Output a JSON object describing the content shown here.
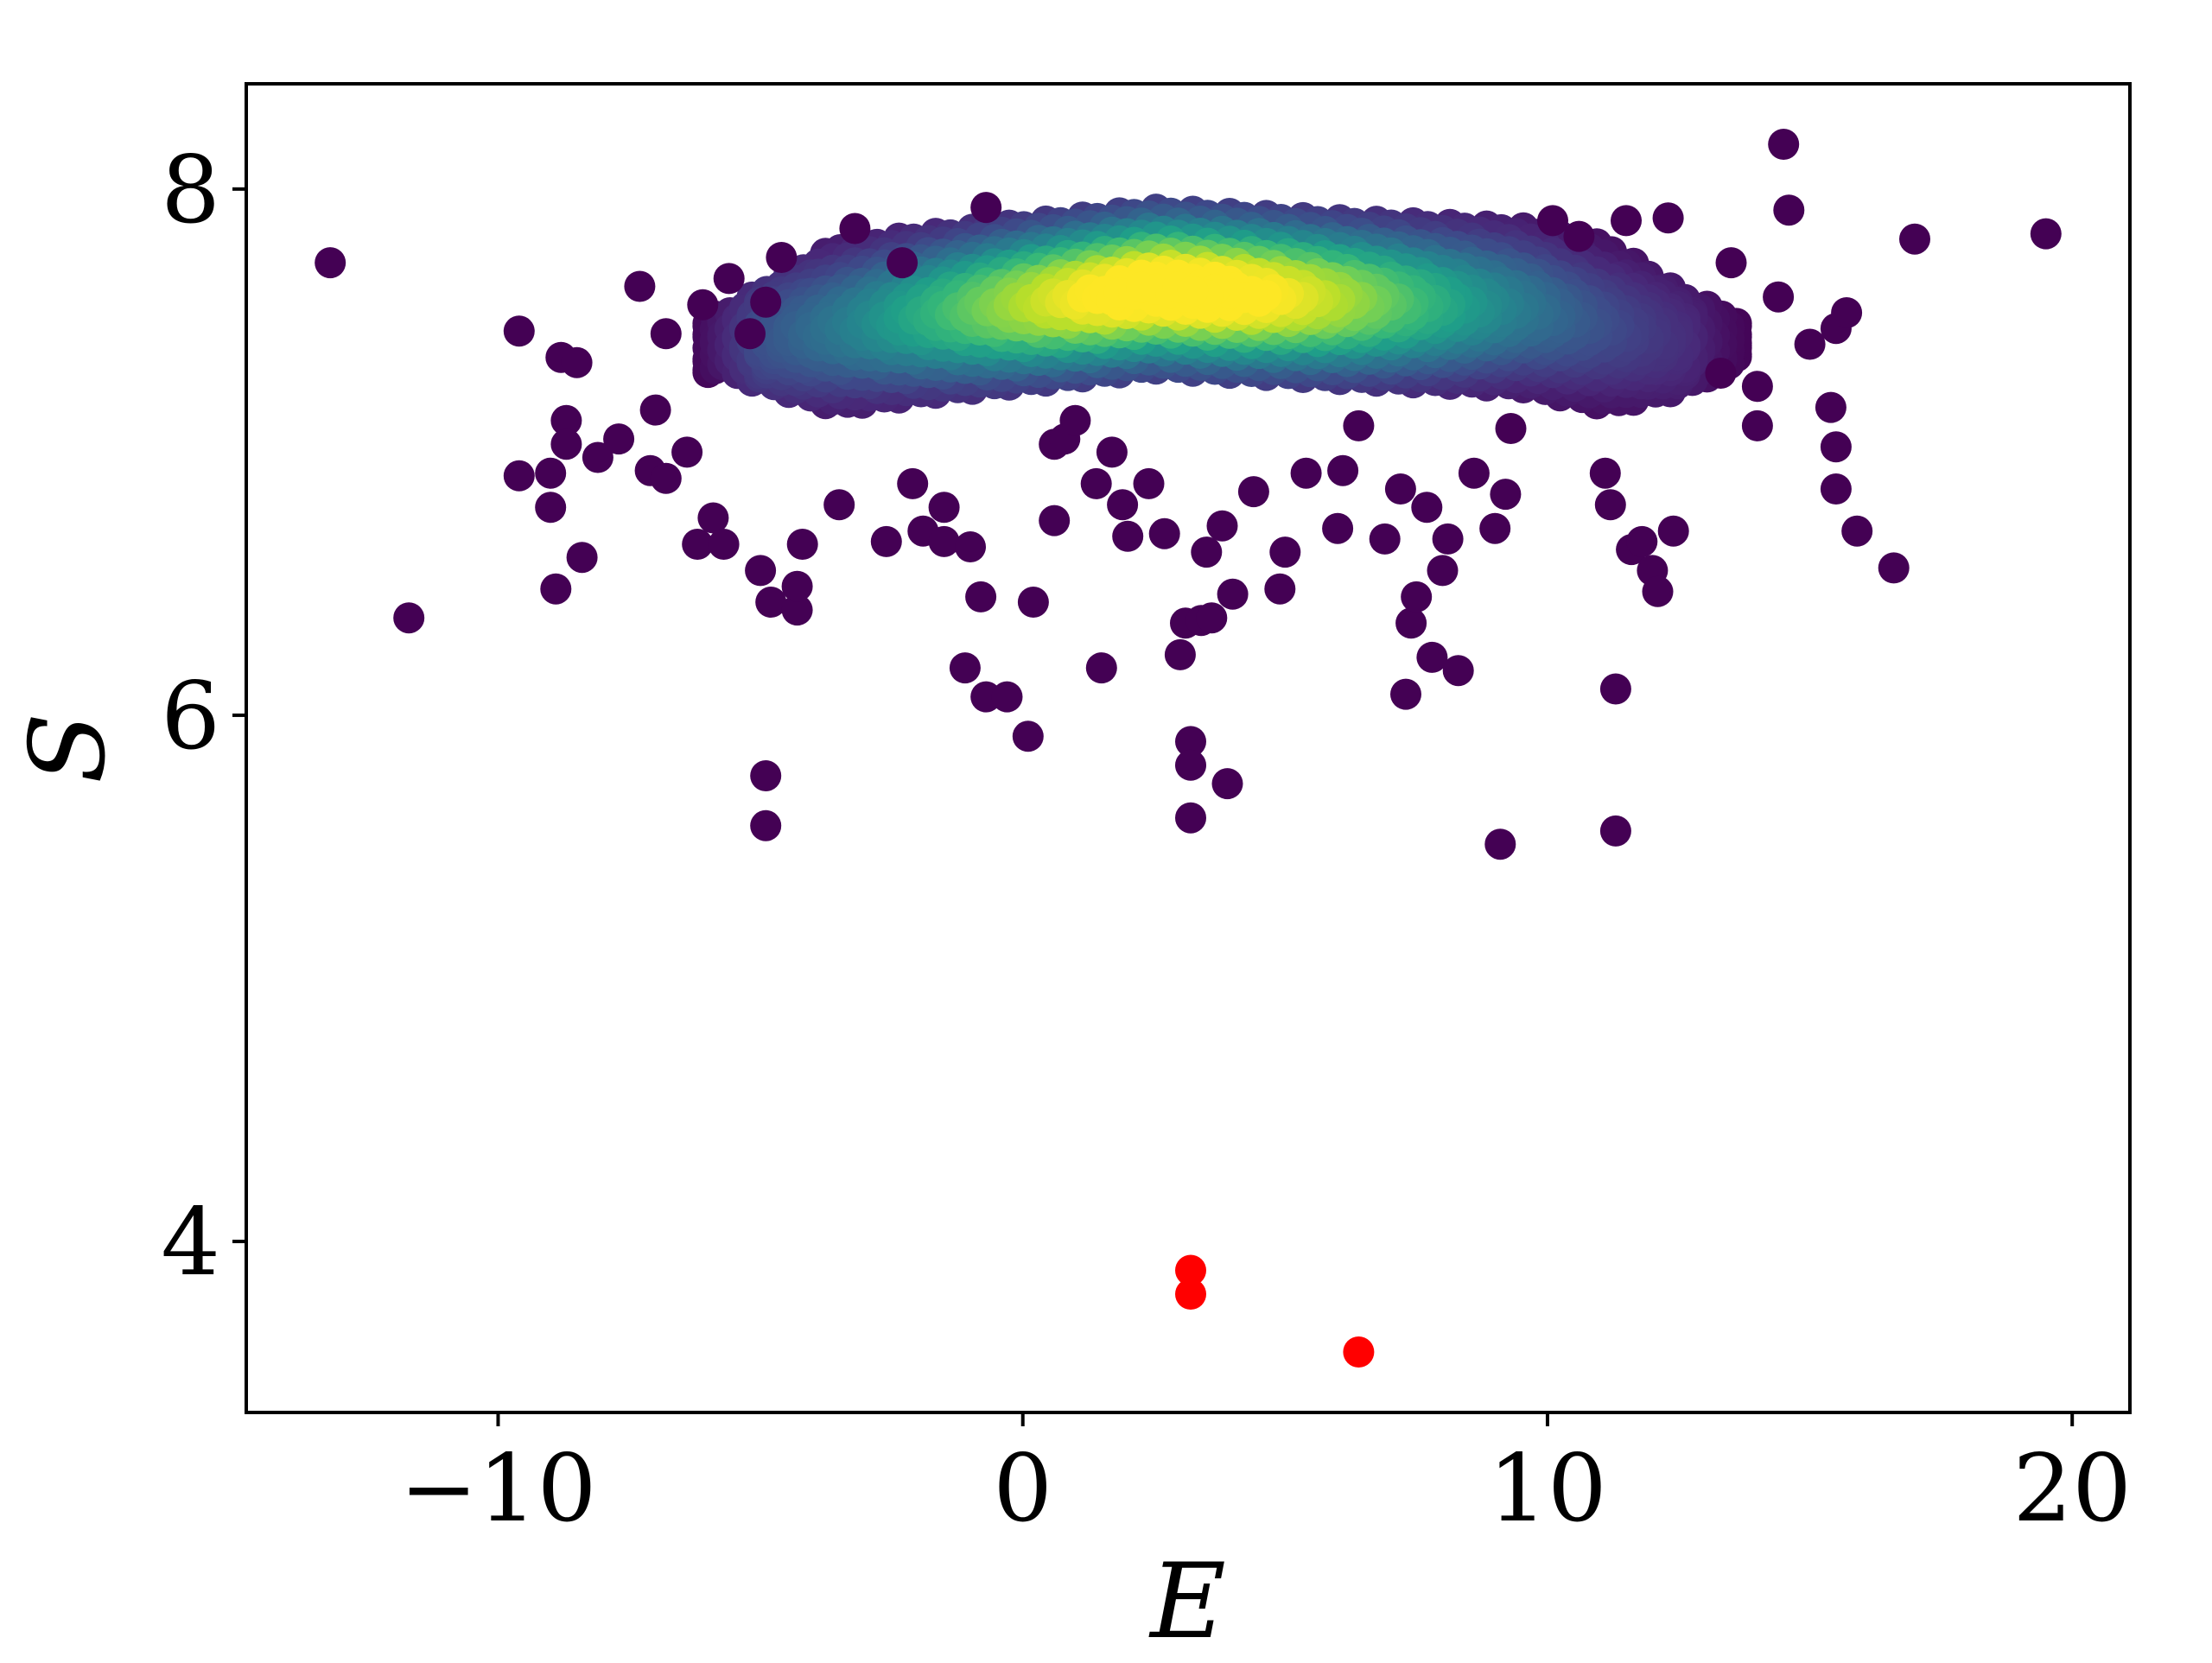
{
  "chart_data": {
    "type": "scatter",
    "xlabel": "E",
    "ylabel": "S",
    "xlim": [
      -14.8,
      21.1
    ],
    "ylim": [
      3.35,
      8.4
    ],
    "x_ticks": [
      {
        "value": -10,
        "label": "−10"
      },
      {
        "value": 0,
        "label": "0"
      },
      {
        "value": 10,
        "label": "10"
      },
      {
        "value": 20,
        "label": "20"
      }
    ],
    "y_ticks": [
      {
        "value": 4,
        "label": "4"
      },
      {
        "value": 6,
        "label": "6"
      },
      {
        "value": 8,
        "label": "8"
      }
    ],
    "grid": false,
    "legend": "none",
    "colormap": "viridis",
    "colors": {
      "low_density": "#440154",
      "mid_density": "#21918c",
      "high_density": "#fde725",
      "highlight": "#ff0000"
    },
    "dense_band": {
      "description_units": "data",
      "centers": [
        {
          "x": -5.5,
          "y": 7.42
        },
        {
          "x": -2.0,
          "y": 7.52
        },
        {
          "x": 2.5,
          "y": 7.62
        },
        {
          "x": 6.0,
          "y": 7.58
        },
        {
          "x": 9.5,
          "y": 7.55
        },
        {
          "x": 12.5,
          "y": 7.42
        }
      ]
    },
    "outlier_points": [
      [
        -13.2,
        7.72
      ],
      [
        -11.7,
        6.37
      ],
      [
        -9.6,
        7.46
      ],
      [
        -9.6,
        6.91
      ],
      [
        -9.0,
        6.92
      ],
      [
        -9.0,
        6.79
      ],
      [
        -8.8,
        7.36
      ],
      [
        -8.5,
        7.34
      ],
      [
        -8.7,
        7.12
      ],
      [
        -8.7,
        7.03
      ],
      [
        -8.4,
        6.6
      ],
      [
        -8.9,
        6.48
      ],
      [
        -8.1,
        6.98
      ],
      [
        -7.7,
        7.05
      ],
      [
        -7.3,
        7.63
      ],
      [
        -7.0,
        7.16
      ],
      [
        -6.8,
        7.45
      ],
      [
        -7.1,
        6.93
      ],
      [
        -6.8,
        6.9
      ],
      [
        -6.1,
        7.56
      ],
      [
        -6.4,
        7.0
      ],
      [
        -6.2,
        6.65
      ],
      [
        -5.9,
        6.75
      ],
      [
        -5.7,
        6.65
      ],
      [
        -5.6,
        7.66
      ],
      [
        -5.2,
        7.45
      ],
      [
        -4.9,
        7.57
      ],
      [
        -5.0,
        6.55
      ],
      [
        -4.8,
        6.43
      ],
      [
        -4.3,
        6.4
      ],
      [
        -4.9,
        5.77
      ],
      [
        -4.9,
        5.58
      ],
      [
        -4.6,
        7.74
      ],
      [
        -4.3,
        6.49
      ],
      [
        -4.2,
        6.65
      ],
      [
        -3.5,
        6.8
      ],
      [
        -3.2,
        7.85
      ],
      [
        -2.6,
        6.66
      ],
      [
        -2.3,
        7.72
      ],
      [
        -2.1,
        6.88
      ],
      [
        -1.9,
        6.7
      ],
      [
        -1.5,
        6.66
      ],
      [
        -1.5,
        6.79
      ],
      [
        -1.1,
        6.18
      ],
      [
        -1.0,
        6.64
      ],
      [
        -0.8,
        6.45
      ],
      [
        -0.7,
        6.07
      ],
      [
        -0.3,
        6.07
      ],
      [
        -0.7,
        7.93
      ],
      [
        0.1,
        5.92
      ],
      [
        0.2,
        6.43
      ],
      [
        0.6,
        7.03
      ],
      [
        0.6,
        6.74
      ],
      [
        0.8,
        7.05
      ],
      [
        1.0,
        7.12
      ],
      [
        1.4,
        6.88
      ],
      [
        1.5,
        6.18
      ],
      [
        1.7,
        7.0
      ],
      [
        1.9,
        6.8
      ],
      [
        2.0,
        6.68
      ],
      [
        2.4,
        6.88
      ],
      [
        2.7,
        6.69
      ],
      [
        3.0,
        6.23
      ],
      [
        3.1,
        6.35
      ],
      [
        3.2,
        5.9
      ],
      [
        3.2,
        5.81
      ],
      [
        3.2,
        5.61
      ],
      [
        3.4,
        6.36
      ],
      [
        3.5,
        6.62
      ],
      [
        3.6,
        6.37
      ],
      [
        3.8,
        6.72
      ],
      [
        3.9,
        5.74
      ],
      [
        4.0,
        6.46
      ],
      [
        4.4,
        6.85
      ],
      [
        4.9,
        6.48
      ],
      [
        5.0,
        6.62
      ],
      [
        5.4,
        6.92
      ],
      [
        6.0,
        6.71
      ],
      [
        6.1,
        6.93
      ],
      [
        6.4,
        7.1
      ],
      [
        6.9,
        6.67
      ],
      [
        7.2,
        6.86
      ],
      [
        7.3,
        6.08
      ],
      [
        7.4,
        6.35
      ],
      [
        7.5,
        6.45
      ],
      [
        7.8,
        6.22
      ],
      [
        7.7,
        6.79
      ],
      [
        8.0,
        6.55
      ],
      [
        8.1,
        6.67
      ],
      [
        8.3,
        6.17
      ],
      [
        8.6,
        6.92
      ],
      [
        9.0,
        6.71
      ],
      [
        9.2,
        6.84
      ],
      [
        9.1,
        5.51
      ],
      [
        9.3,
        7.09
      ],
      [
        10.1,
        7.88
      ],
      [
        10.6,
        7.82
      ],
      [
        11.1,
        6.92
      ],
      [
        11.2,
        6.8
      ],
      [
        11.3,
        6.1
      ],
      [
        11.3,
        5.56
      ],
      [
        11.5,
        7.88
      ],
      [
        11.6,
        6.63
      ],
      [
        11.8,
        6.66
      ],
      [
        12.0,
        6.55
      ],
      [
        12.1,
        6.47
      ],
      [
        12.4,
        6.7
      ],
      [
        12.3,
        7.89
      ],
      [
        13.3,
        7.3
      ],
      [
        13.5,
        7.72
      ],
      [
        14.0,
        7.1
      ],
      [
        14.0,
        7.25
      ],
      [
        14.4,
        7.59
      ],
      [
        14.5,
        8.17
      ],
      [
        14.6,
        7.92
      ],
      [
        15.0,
        7.41
      ],
      [
        15.5,
        7.47
      ],
      [
        15.7,
        7.53
      ],
      [
        15.4,
        7.17
      ],
      [
        15.5,
        7.02
      ],
      [
        15.5,
        6.86
      ],
      [
        15.9,
        6.7
      ],
      [
        16.6,
        6.56
      ],
      [
        17.0,
        7.81
      ],
      [
        19.5,
        7.83
      ]
    ],
    "highlight_points": [
      [
        3.2,
        3.89
      ],
      [
        3.2,
        3.8
      ],
      [
        6.4,
        3.58
      ]
    ]
  }
}
